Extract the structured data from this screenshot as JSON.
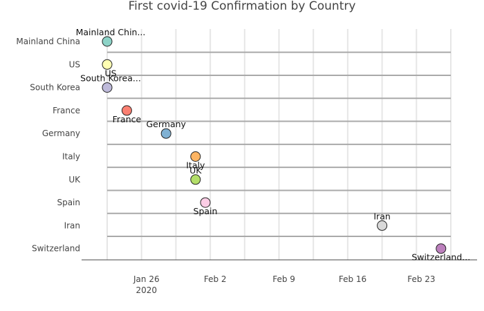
{
  "chart_data": {
    "type": "scatter",
    "title": "First covid-19 Confirmation by Country",
    "xlabel": "",
    "ylabel": "",
    "x_axis": {
      "type": "date",
      "range": [
        "2020-01-21",
        "2020-02-26"
      ],
      "tick_values": [
        "2020-01-26",
        "2020-02-02",
        "2020-02-09",
        "2020-02-16",
        "2020-02-23"
      ],
      "tick_labels": [
        "Jan 26",
        "Feb 2",
        "Feb 9",
        "Feb 16",
        "Feb 23"
      ],
      "year_label": "2020",
      "grid": true
    },
    "y_axis": {
      "categories": [
        "Mainland China",
        "US",
        "South Korea",
        "France",
        "Germany",
        "Italy",
        "UK",
        "Spain",
        "Iran",
        "Switzerland"
      ],
      "grid": true
    },
    "points": [
      {
        "country": "Mainland China",
        "date": "2020-01-22",
        "label": "Mainland Chin...",
        "color": "#8dd3c7",
        "label_pos": "above"
      },
      {
        "country": "US",
        "date": "2020-01-22",
        "label": "US",
        "color": "#ffffb3",
        "label_pos": "below"
      },
      {
        "country": "South Korea",
        "date": "2020-01-22",
        "label": "South Korea...",
        "color": "#bebada",
        "label_pos": "above"
      },
      {
        "country": "France",
        "date": "2020-01-24",
        "label": "France",
        "color": "#fb8072",
        "label_pos": "below"
      },
      {
        "country": "Germany",
        "date": "2020-01-28",
        "label": "Germany",
        "color": "#80b1d3",
        "label_pos": "above"
      },
      {
        "country": "Italy",
        "date": "2020-01-31",
        "label": "Italy",
        "color": "#fdb462",
        "label_pos": "below"
      },
      {
        "country": "UK",
        "date": "2020-01-31",
        "label": "UK",
        "color": "#b3de69",
        "label_pos": "above"
      },
      {
        "country": "Spain",
        "date": "2020-02-01",
        "label": "Spain",
        "color": "#fccde5",
        "label_pos": "below"
      },
      {
        "country": "Iran",
        "date": "2020-02-19",
        "label": "Iran",
        "color": "#d9d9d9",
        "label_pos": "above"
      },
      {
        "country": "Switzerland",
        "date": "2020-02-25",
        "label": "Switzerland...",
        "color": "#bc80bd",
        "label_pos": "below"
      }
    ]
  }
}
